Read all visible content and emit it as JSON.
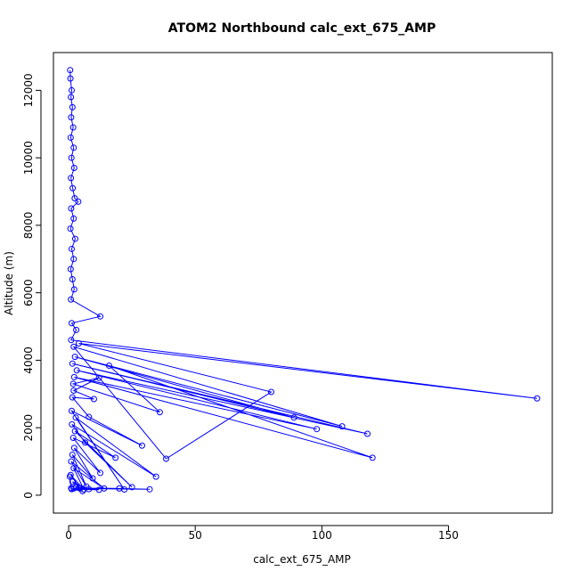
{
  "chart_data": {
    "type": "line",
    "title": "ATOM2 Northbound calc_ext_675_AMP",
    "xlabel": "calc_ext_675_AMP",
    "ylabel": "Altitude (m)",
    "xlim": [
      -6,
      191
    ],
    "ylim": [
      -530,
      13120
    ],
    "xticks": [
      0,
      50,
      100,
      150
    ],
    "yticks": [
      0,
      2000,
      4000,
      6000,
      8000,
      10000,
      12000
    ],
    "grid": false,
    "legend": "none",
    "marker": "open-circle",
    "color": "#0000ff",
    "series": [
      {
        "values": [
          [
            0.6,
            12600
          ],
          [
            0.7,
            12350
          ],
          [
            1.2,
            12000
          ],
          [
            0.9,
            11800
          ],
          [
            1.5,
            11500
          ],
          [
            1.0,
            11200
          ],
          [
            1.8,
            10900
          ],
          [
            0.8,
            10600
          ],
          [
            2.0,
            10300
          ],
          [
            1.1,
            10000
          ],
          [
            2.2,
            9700
          ],
          [
            0.9,
            9400
          ],
          [
            1.6,
            9100
          ],
          [
            2.4,
            8800
          ],
          [
            3.8,
            8700
          ],
          [
            1.0,
            8500
          ],
          [
            2.0,
            8200
          ],
          [
            0.7,
            7900
          ],
          [
            2.6,
            7600
          ],
          [
            1.2,
            7300
          ],
          [
            2.0,
            7000
          ],
          [
            0.8,
            6700
          ],
          [
            1.5,
            6400
          ],
          [
            2.2,
            6100
          ],
          [
            0.9,
            5800
          ],
          [
            12.5,
            5300
          ],
          [
            1.2,
            5100
          ],
          [
            3.0,
            4900
          ],
          [
            1.0,
            4600
          ],
          [
            185,
            2870
          ],
          [
            4.0,
            4500
          ],
          [
            80,
            3060
          ],
          [
            38.5,
            1080
          ],
          [
            2.0,
            4400
          ],
          [
            108,
            2040
          ],
          [
            2.5,
            4100
          ],
          [
            89,
            2300
          ],
          [
            1.5,
            3900
          ],
          [
            118,
            1820
          ],
          [
            3.2,
            3700
          ],
          [
            98,
            1960
          ],
          [
            2.2,
            3500
          ],
          [
            120,
            1110
          ],
          [
            16,
            3840
          ],
          [
            36,
            2460
          ],
          [
            1.8,
            3300
          ],
          [
            12,
            3480
          ],
          [
            2.0,
            3100
          ],
          [
            10,
            2850
          ],
          [
            1.5,
            2900
          ],
          [
            8,
            2320
          ],
          [
            29,
            1470
          ],
          [
            1.2,
            2500
          ],
          [
            22,
            170
          ],
          [
            2.8,
            2300
          ],
          [
            34.5,
            550
          ],
          [
            1.3,
            2100
          ],
          [
            6.5,
            1560
          ],
          [
            25,
            240
          ],
          [
            2.5,
            1900
          ],
          [
            18.5,
            1110
          ],
          [
            1.8,
            1700
          ],
          [
            12.5,
            660
          ],
          [
            2.2,
            1400
          ],
          [
            9.5,
            500
          ],
          [
            1.5,
            1200
          ],
          [
            7,
            260
          ],
          [
            1.0,
            1000
          ],
          [
            14,
            200
          ],
          [
            2.0,
            800
          ],
          [
            6,
            170
          ],
          [
            0.8,
            600
          ],
          [
            4.5,
            200
          ],
          [
            1.5,
            400
          ],
          [
            8,
            180
          ],
          [
            3.0,
            250
          ],
          [
            12,
            160
          ],
          [
            1.2,
            180
          ],
          [
            5.5,
            120
          ],
          [
            2.0,
            200
          ],
          [
            32,
            175
          ],
          [
            20,
            200
          ],
          [
            1.0,
            210
          ],
          [
            0.5,
            550
          ]
        ]
      }
    ]
  }
}
